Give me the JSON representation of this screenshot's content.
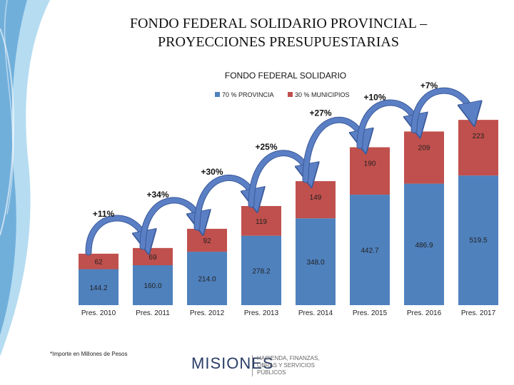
{
  "title_line1": "FONDO FEDERAL  SOLIDARIO PROVINCIAL –",
  "title_line2": "PROYECCIONES PRESUPUESTARIAS",
  "footnote": "*Importe en Millones de Pesos",
  "logo": {
    "brand": "MISIONES",
    "line1": "HACIENDA, FINANZAS,",
    "line2": "OBRAS Y SERVICIOS PÚBLICOS"
  },
  "colors": {
    "provincia": "#4f81bd",
    "municipios": "#c0504d",
    "arrow": "#5b7fc4",
    "background_swirl": "#2a9ad6"
  },
  "chart_data": {
    "type": "bar",
    "stacked": true,
    "title": "FONDO FEDERAL SOLIDARIO",
    "legend_position": "top",
    "categories": [
      "Pres. 2010",
      "Pres. 2011",
      "Pres. 2012",
      "Pres. 2013",
      "Pres. 2014",
      "Pres. 2015",
      "Pres. 2016",
      "Pres. 2017"
    ],
    "series": [
      {
        "name": "70 % PROVINCIA",
        "values": [
          144.2,
          160.0,
          214.0,
          278.2,
          348.0,
          442.7,
          486.9,
          519.5
        ],
        "labels": [
          "144.2",
          "160.0",
          "214.0",
          "278.2",
          "348.0",
          "442.7",
          "486.9",
          "519.5"
        ]
      },
      {
        "name": "30 % MUNICIPIOS",
        "values": [
          62,
          69,
          92,
          119,
          149,
          190,
          209,
          223
        ],
        "labels": [
          "62",
          "69",
          "92",
          "119",
          "149",
          "190",
          "209",
          "223"
        ]
      }
    ],
    "growth_labels": [
      "+11%",
      "+34%",
      "+30%",
      "+25%",
      "+27%",
      "+10%",
      "+7%"
    ],
    "ylim": [
      0,
      780
    ]
  }
}
